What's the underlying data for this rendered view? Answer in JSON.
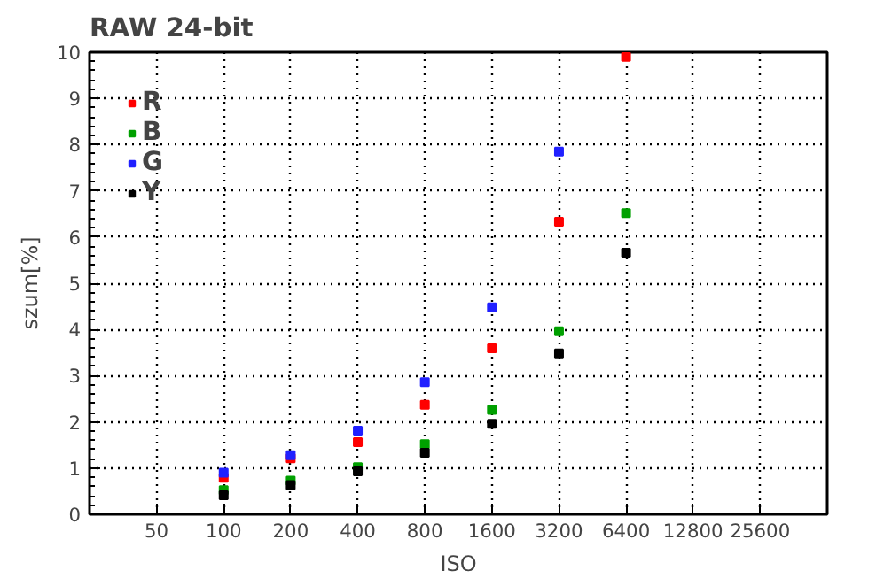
{
  "chart_data": {
    "type": "scatter",
    "title": "RAW 24-bit",
    "xlabel": "ISO",
    "ylabel": "szum[%]",
    "log": "x",
    "x": [
      100,
      200,
      400,
      800,
      1600,
      3200,
      6400
    ],
    "xlim": [
      25,
      51200
    ],
    "xticks": [
      50,
      100,
      200,
      400,
      800,
      1600,
      3200,
      6400,
      12800,
      25600
    ],
    "ylim": [
      0,
      10
    ],
    "yticks": [
      0,
      1,
      2,
      3,
      4,
      5,
      6,
      7,
      8,
      9,
      10
    ],
    "grid": true,
    "legend": "top left",
    "marker": "square",
    "series": [
      {
        "name": "R",
        "color": "#ff0000",
        "values": [
          0.79,
          1.21,
          1.56,
          2.37,
          3.59,
          6.33,
          9.9
        ]
      },
      {
        "name": "B",
        "color": "#00a000",
        "values": [
          0.52,
          0.73,
          1.02,
          1.52,
          2.26,
          3.96,
          6.52
        ]
      },
      {
        "name": "G",
        "color": "#2020ff",
        "values": [
          0.9,
          1.28,
          1.81,
          2.86,
          4.48,
          7.85,
          null
        ]
      },
      {
        "name": "Y",
        "color": "#000000",
        "values": [
          0.41,
          0.63,
          0.93,
          1.33,
          1.96,
          3.48,
          5.66
        ]
      }
    ]
  }
}
